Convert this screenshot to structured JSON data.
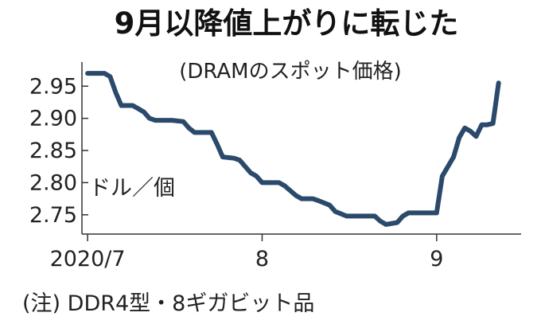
{
  "chart_data": {
    "type": "line",
    "title": "9月以降値上がりに転じた",
    "subtitle": "(DRAMのスポット価格)",
    "unit_label": "ドル／個",
    "note": "(注) DDR4型・8ギガビット品",
    "y_ticks": [
      2.75,
      2.8,
      2.85,
      2.9,
      2.95
    ],
    "y_tick_labels": [
      "2.75",
      "2.80",
      "2.85",
      "2.90",
      "2.95"
    ],
    "ylim": [
      2.72,
      2.985
    ],
    "x_ticks": [
      0,
      31,
      62
    ],
    "x_tick_labels": [
      "2020/7",
      "8",
      "9"
    ],
    "xlim": [
      -1,
      77
    ],
    "series": [
      {
        "values": [
          [
            0,
            2.97
          ],
          [
            3,
            2.97
          ],
          [
            4,
            2.965
          ],
          [
            5,
            2.94
          ],
          [
            6,
            2.92
          ],
          [
            8,
            2.92
          ],
          [
            9,
            2.915
          ],
          [
            10,
            2.91
          ],
          [
            11,
            2.9
          ],
          [
            12,
            2.897
          ],
          [
            15,
            2.897
          ],
          [
            17,
            2.895
          ],
          [
            18,
            2.885
          ],
          [
            19,
            2.878
          ],
          [
            22,
            2.878
          ],
          [
            23,
            2.86
          ],
          [
            24,
            2.84
          ],
          [
            26,
            2.838
          ],
          [
            27,
            2.835
          ],
          [
            28,
            2.825
          ],
          [
            29,
            2.815
          ],
          [
            30,
            2.81
          ],
          [
            31,
            2.8
          ],
          [
            34,
            2.8
          ],
          [
            35,
            2.795
          ],
          [
            37,
            2.78
          ],
          [
            38,
            2.775
          ],
          [
            40,
            2.775
          ],
          [
            41,
            2.772
          ],
          [
            43,
            2.765
          ],
          [
            44,
            2.755
          ],
          [
            46,
            2.748
          ],
          [
            51,
            2.748
          ],
          [
            52,
            2.74
          ],
          [
            53,
            2.735
          ],
          [
            55,
            2.738
          ],
          [
            56,
            2.748
          ],
          [
            57,
            2.753
          ],
          [
            62,
            2.753
          ],
          [
            63,
            2.81
          ],
          [
            65,
            2.84
          ],
          [
            66,
            2.87
          ],
          [
            67,
            2.885
          ],
          [
            68,
            2.88
          ],
          [
            69,
            2.872
          ],
          [
            70,
            2.89
          ],
          [
            71,
            2.89
          ],
          [
            72,
            2.892
          ],
          [
            73,
            2.955
          ]
        ]
      }
    ],
    "colors": {
      "line": "#2b4a6b",
      "axis": "#333333"
    },
    "grid": false
  }
}
